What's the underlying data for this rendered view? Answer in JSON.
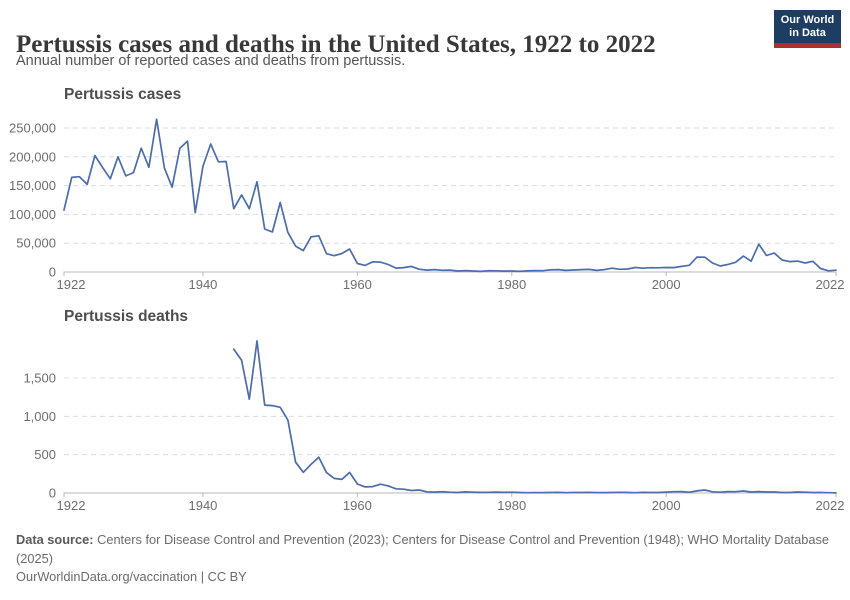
{
  "header": {
    "title": "Pertussis cases and deaths in the United States, 1922 to 2022",
    "subtitle": "Annual number of reported cases and deaths from pertussis.",
    "logo": {
      "line1": "Our World",
      "line2": "in Data",
      "bg_color": "#1d3d63",
      "accent_color": "#a8332a"
    }
  },
  "footer": {
    "source_label": "Data source:",
    "source_text": " Centers for Disease Control and Prevention (2023); Centers for Disease Control and Prevention (1948); WHO Mortality Database (2025)",
    "note": "OurWorldinData.org/vaccination | CC BY"
  },
  "chart_data": [
    {
      "type": "line",
      "title": "Pertussis cases",
      "xlabel": "",
      "ylabel": "",
      "xlim": [
        1922,
        2022
      ],
      "ylim": [
        0,
        250000
      ],
      "grid": true,
      "legend_position": "none",
      "line_color": "#4d6cab",
      "x_ticks": [
        "1922",
        "1940",
        "1960",
        "1980",
        "2000",
        "2022"
      ],
      "x_tick_values": [
        1922,
        1940,
        1960,
        1980,
        2000,
        2022
      ],
      "y_ticks": [
        {
          "value": 0,
          "label": "0"
        },
        {
          "value": 50000,
          "label": "50,000"
        },
        {
          "value": 100000,
          "label": "100,000"
        },
        {
          "value": 150000,
          "label": "150,000"
        },
        {
          "value": 200000,
          "label": "200,000"
        },
        {
          "value": 250000,
          "label": "250,000"
        }
      ],
      "series": [
        {
          "name": "Pertussis cases",
          "start_year": 1922,
          "values": [
            107473,
            164191,
            165418,
            152003,
            202210,
            181411,
            161799,
            199924,
            166914,
            172559,
            214870,
            181714,
            265269,
            180518,
            147237,
            214652,
            227319,
            103188,
            183866,
            222202,
            191383,
            191890,
            109873,
            133792,
            109860,
            156517,
            74715,
            69479,
            120718,
            68687,
            45030,
            37129,
            60886,
            62786,
            31732,
            28295,
            32148,
            40005,
            14809,
            11468,
            17749,
            17135,
            13005,
            6799,
            7717,
            9718,
            4810,
            3285,
            4249,
            3036,
            3287,
            1759,
            2402,
            1738,
            1010,
            2177,
            2063,
            1623,
            1730,
            1248,
            1895,
            2463,
            2276,
            3589,
            4195,
            2823,
            3450,
            4157,
            4570,
            2719,
            4083,
            6586,
            4617,
            5137,
            7796,
            6564,
            7405,
            7298,
            7867,
            7580,
            9771,
            11647,
            25827,
            25616,
            15632,
            10454,
            13278,
            16858,
            27550,
            18719,
            48277,
            28639,
            32971,
            20762,
            17972,
            18975,
            15609,
            18617,
            6124,
            2116,
            3044
          ]
        }
      ]
    },
    {
      "type": "line",
      "title": "Pertussis deaths",
      "xlabel": "",
      "ylabel": "",
      "xlim": [
        1922,
        2022
      ],
      "ylim": [
        0,
        1500
      ],
      "grid": true,
      "legend_position": "none",
      "line_color": "#4d6cab",
      "x_ticks": [
        "1922",
        "1940",
        "1960",
        "1980",
        "2000",
        "2022"
      ],
      "x_tick_values": [
        1922,
        1940,
        1960,
        1980,
        2000,
        2022
      ],
      "y_ticks": [
        {
          "value": 0,
          "label": "0"
        },
        {
          "value": 500,
          "label": "500"
        },
        {
          "value": 1000,
          "label": "1,000"
        },
        {
          "value": 1500,
          "label": "1,500"
        }
      ],
      "series": [
        {
          "name": "Pertussis deaths",
          "start_year": 1944,
          "values": [
            1876,
            1731,
            1224,
            1982,
            1146,
            1140,
            1118,
            951,
            402,
            270,
            373,
            467,
            266,
            190,
            177,
            269,
            118,
            79,
            83,
            115,
            93,
            55,
            49,
            33,
            39,
            16,
            12,
            17,
            10,
            7,
            14,
            11,
            8,
            9,
            12,
            8,
            11,
            6,
            4,
            5,
            5,
            6,
            8,
            4,
            6,
            6,
            8,
            5,
            5,
            7,
            9,
            6,
            4,
            8,
            7,
            7,
            12,
            17,
            18,
            11,
            27,
            39,
            16,
            10,
            18,
            17,
            26,
            13,
            18,
            13,
            13,
            6,
            7,
            13,
            10,
            6,
            6,
            4,
            3
          ]
        }
      ]
    }
  ]
}
